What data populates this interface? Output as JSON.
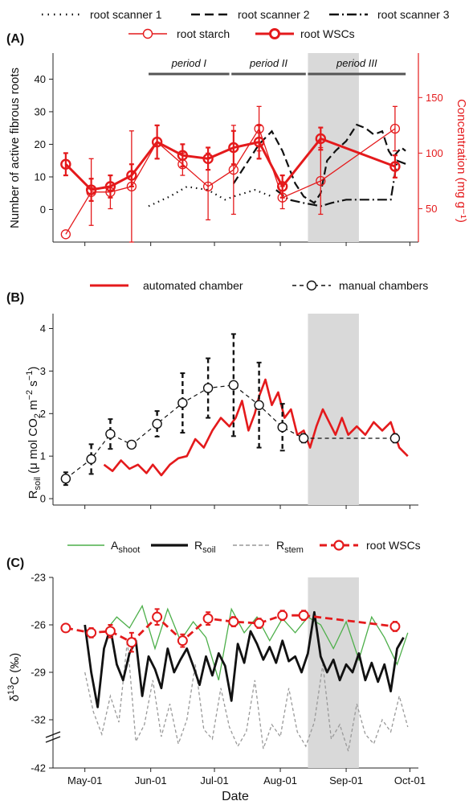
{
  "figure": {
    "panelA": {
      "tag": "(A)",
      "legend": {
        "row1": [
          "root scanner 1",
          "root scanner 2",
          "root scanner 3"
        ],
        "row2": [
          "root starch",
          "root WSCs"
        ]
      },
      "ylabel": "Number of active fibrous roots",
      "y2label": "Concentration (mg g⁻¹)",
      "periods": [
        "period I",
        "period II",
        "period III"
      ]
    },
    "panelB": {
      "tag": "(B)",
      "legend": [
        "automated chamber",
        "manual chambers"
      ],
      "ylabel": "R_soil (μ mol CO2 m^-2 s^-1)"
    },
    "panelC": {
      "tag": "(C)",
      "legend": [
        "A_shoot",
        "R_soil",
        "R_stem",
        "root WSCs"
      ],
      "ylabel": "δ¹³C (‰)"
    },
    "xlabel": "Date"
  },
  "chart_data": [
    {
      "type": "line",
      "panel": "A",
      "x_ticks": [
        "May-01",
        "Jun-01",
        "Jul-01",
        "Aug-01",
        "Sep-01",
        "Oct-01"
      ],
      "y_ticks": [
        0,
        10,
        20,
        30,
        40
      ],
      "ylim": [
        -10,
        48
      ],
      "y2_ticks": [
        50,
        100,
        150
      ],
      "y2lim": [
        20,
        190
      ],
      "periods": [
        {
          "name": "period I",
          "start": "2020-05-31",
          "end": "2020-07-08"
        },
        {
          "name": "period II",
          "start": "2020-07-09",
          "end": "2020-08-13"
        },
        {
          "name": "period III",
          "start": "2020-08-14",
          "end": "2020-09-29"
        }
      ],
      "shaded_interval": [
        "2020-08-14",
        "2020-09-07"
      ],
      "series": [
        {
          "name": "root scanner 1",
          "axis": "left",
          "style": "dotted",
          "color": "#111111",
          "x": [
            "2020-05-31",
            "2020-06-10",
            "2020-06-18",
            "2020-06-28",
            "2020-07-06",
            "2020-07-10",
            "2020-07-20",
            "2020-07-28"
          ],
          "y": [
            1,
            4,
            7,
            6,
            3,
            4,
            6,
            4
          ]
        },
        {
          "name": "root scanner 2",
          "axis": "left",
          "style": "dashed",
          "color": "#111111",
          "x": [
            "2020-07-10",
            "2020-07-16",
            "2020-07-22",
            "2020-07-28",
            "2020-08-02",
            "2020-08-08",
            "2020-08-12",
            "2020-08-17",
            "2020-08-20",
            "2020-08-23",
            "2020-08-27",
            "2020-09-01",
            "2020-09-06",
            "2020-09-10",
            "2020-09-14",
            "2020-09-18",
            "2020-09-21",
            "2020-09-23",
            "2020-09-27",
            "2020-09-29"
          ],
          "y": [
            8,
            14,
            20,
            24,
            18,
            8,
            4,
            2,
            5,
            15,
            18,
            21,
            26,
            25,
            23,
            24,
            18,
            16,
            19,
            18
          ]
        },
        {
          "name": "root scanner 3",
          "axis": "left",
          "style": "dashdot",
          "color": "#111111",
          "x": [
            "2020-07-30",
            "2020-08-05",
            "2020-08-12",
            "2020-08-20",
            "2020-08-25",
            "2020-09-01",
            "2020-09-10",
            "2020-09-18",
            "2020-09-22",
            "2020-09-25",
            "2020-09-29"
          ],
          "y": [
            6,
            3,
            2,
            1,
            2,
            3,
            3,
            3,
            3,
            15,
            14
          ]
        },
        {
          "name": "root starch",
          "axis": "right",
          "style": "thin-circle",
          "color": "#e41a1c",
          "x": [
            "2020-04-22",
            "2020-05-04",
            "2020-05-13",
            "2020-05-23",
            "2020-06-04",
            "2020-06-16",
            "2020-06-28",
            "2020-07-10",
            "2020-07-22",
            "2020-08-02",
            "2020-08-20",
            "2020-09-24"
          ],
          "y": [
            27,
            65,
            65,
            70,
            110,
            90,
            70,
            85,
            122,
            60,
            75,
            122
          ],
          "err": [
            0,
            30,
            15,
            50,
            15,
            10,
            30,
            40,
            20,
            10,
            30,
            20
          ]
        },
        {
          "name": "root WSCs",
          "axis": "right",
          "style": "thick-circle",
          "color": "#e41a1c",
          "x": [
            "2020-04-22",
            "2020-05-04",
            "2020-05-13",
            "2020-05-23",
            "2020-06-04",
            "2020-06-16",
            "2020-06-28",
            "2020-07-10",
            "2020-07-22",
            "2020-08-02",
            "2020-08-20",
            "2020-09-24"
          ],
          "y": [
            90,
            67,
            70,
            80,
            110,
            98,
            95,
            105,
            110,
            70,
            113,
            88
          ],
          "err": [
            10,
            10,
            10,
            10,
            15,
            10,
            10,
            15,
            15,
            10,
            10,
            10
          ]
        }
      ]
    },
    {
      "type": "line",
      "panel": "B",
      "x_ticks": [
        "May-01",
        "Jun-01",
        "Jul-01",
        "Aug-01",
        "Sep-01",
        "Oct-01"
      ],
      "y_ticks": [
        0,
        1,
        2,
        3,
        4
      ],
      "ylim": [
        -0.15,
        4.35
      ],
      "shaded_interval": [
        "2020-08-14",
        "2020-09-07"
      ],
      "series": [
        {
          "name": "automated chamber",
          "style": "thick-line",
          "color": "#e41a1c",
          "x": [
            "2020-05-10",
            "2020-05-14",
            "2020-05-18",
            "2020-05-22",
            "2020-05-26",
            "2020-05-30",
            "2020-06-02",
            "2020-06-06",
            "2020-06-10",
            "2020-06-14",
            "2020-06-18",
            "2020-06-22",
            "2020-06-26",
            "2020-06-30",
            "2020-07-04",
            "2020-07-08",
            "2020-07-11",
            "2020-07-14",
            "2020-07-17",
            "2020-07-20",
            "2020-07-22",
            "2020-07-25",
            "2020-07-28",
            "2020-07-31",
            "2020-08-03",
            "2020-08-06",
            "2020-08-09",
            "2020-08-12",
            "2020-08-15",
            "2020-08-18",
            "2020-08-21",
            "2020-08-24",
            "2020-08-27",
            "2020-08-30",
            "2020-09-02",
            "2020-09-06",
            "2020-09-10",
            "2020-09-14",
            "2020-09-18",
            "2020-09-22",
            "2020-09-26",
            "2020-09-30"
          ],
          "y": [
            0.8,
            0.65,
            0.9,
            0.7,
            0.8,
            0.6,
            0.8,
            0.55,
            0.8,
            0.95,
            1.0,
            1.4,
            1.2,
            1.6,
            1.9,
            1.7,
            1.9,
            2.3,
            1.6,
            2.0,
            2.4,
            2.8,
            2.2,
            2.5,
            1.9,
            2.1,
            1.5,
            1.6,
            1.2,
            1.7,
            2.1,
            1.8,
            1.5,
            1.9,
            1.5,
            1.7,
            1.5,
            1.8,
            1.6,
            1.8,
            1.2,
            1.0
          ]
        },
        {
          "name": "manual chambers",
          "style": "dashed-circle",
          "color": "#111111",
          "x": [
            "2020-04-22",
            "2020-05-04",
            "2020-05-13",
            "2020-05-23",
            "2020-06-04",
            "2020-06-16",
            "2020-06-28",
            "2020-07-10",
            "2020-07-22",
            "2020-08-02",
            "2020-08-12",
            "2020-09-24"
          ],
          "y": [
            0.47,
            0.93,
            1.52,
            1.27,
            1.76,
            2.25,
            2.6,
            2.67,
            2.2,
            1.68,
            1.42,
            1.42
          ],
          "err": [
            0.15,
            0.35,
            0.35,
            0.05,
            0.3,
            0.7,
            0.7,
            1.2,
            1.0,
            0.55,
            0.1,
            0.1
          ]
        }
      ]
    },
    {
      "type": "line",
      "panel": "C",
      "x_ticks": [
        "May-01",
        "Jun-01",
        "Jul-01",
        "Aug-01",
        "Sep-01",
        "Oct-01"
      ],
      "y_ticks": [
        -23,
        -26,
        -29,
        -32,
        -42
      ],
      "ylim": [
        -42,
        -23
      ],
      "axis_break": "between -32 and -42",
      "shaded_interval": [
        "2020-08-14",
        "2020-09-07"
      ],
      "series": [
        {
          "name": "A_shoot",
          "style": "thin-line",
          "color": "#4daf4a",
          "x": [
            "2020-05-10",
            "2020-05-16",
            "2020-05-22",
            "2020-05-28",
            "2020-06-03",
            "2020-06-09",
            "2020-06-15",
            "2020-06-21",
            "2020-06-27",
            "2020-07-03",
            "2020-07-09",
            "2020-07-15",
            "2020-07-21",
            "2020-07-27",
            "2020-08-02",
            "2020-08-08",
            "2020-08-14",
            "2020-08-20",
            "2020-08-26",
            "2020-09-01",
            "2020-09-07",
            "2020-09-13",
            "2020-09-19",
            "2020-09-25",
            "2020-09-30"
          ],
          "y": [
            -26.5,
            -25.5,
            -26.2,
            -24.8,
            -27.5,
            -25.0,
            -27.0,
            -25.8,
            -26.8,
            -29.5,
            -25.0,
            -26.5,
            -25.5,
            -27.0,
            -25.6,
            -26.5,
            -25.5,
            -26.0,
            -27.5,
            -25.8,
            -28.2,
            -25.5,
            -26.8,
            -28.5,
            -26.5
          ]
        },
        {
          "name": "R_soil",
          "style": "thick-line",
          "color": "#111111",
          "x": [
            "2020-05-01",
            "2020-05-04",
            "2020-05-07",
            "2020-05-10",
            "2020-05-13",
            "2020-05-16",
            "2020-05-19",
            "2020-05-22",
            "2020-05-25",
            "2020-05-28",
            "2020-05-31",
            "2020-06-03",
            "2020-06-06",
            "2020-06-09",
            "2020-06-12",
            "2020-06-15",
            "2020-06-18",
            "2020-06-21",
            "2020-06-24",
            "2020-06-27",
            "2020-06-30",
            "2020-07-03",
            "2020-07-06",
            "2020-07-09",
            "2020-07-12",
            "2020-07-15",
            "2020-07-18",
            "2020-07-21",
            "2020-07-24",
            "2020-07-27",
            "2020-07-30",
            "2020-08-02",
            "2020-08-05",
            "2020-08-08",
            "2020-08-11",
            "2020-08-14",
            "2020-08-17",
            "2020-08-20",
            "2020-08-23",
            "2020-08-26",
            "2020-08-29",
            "2020-09-01",
            "2020-09-04",
            "2020-09-07",
            "2020-09-10",
            "2020-09-13",
            "2020-09-16",
            "2020-09-19",
            "2020-09-22",
            "2020-09-25",
            "2020-09-28"
          ],
          "y": [
            -26.0,
            -29.0,
            -31.2,
            -27.5,
            -26.2,
            -28.5,
            -29.5,
            -27.8,
            -27.0,
            -30.5,
            -28.0,
            -28.8,
            -30.0,
            -27.5,
            -29.0,
            -28.2,
            -27.5,
            -28.6,
            -29.8,
            -28.0,
            -29.2,
            -27.8,
            -28.6,
            -30.8,
            -27.2,
            -28.4,
            -26.4,
            -27.2,
            -28.2,
            -27.4,
            -28.4,
            -27.0,
            -28.3,
            -28.0,
            -29.0,
            -27.8,
            -25.2,
            -28.0,
            -29.0,
            -28.2,
            -29.5,
            -28.5,
            -29.0,
            -27.8,
            -29.5,
            -28.4,
            -29.6,
            -28.5,
            -30.2,
            -27.5,
            -26.8
          ]
        },
        {
          "name": "R_stem",
          "style": "dashed-thin",
          "color": "#999999",
          "x": [
            "2020-05-01",
            "2020-05-05",
            "2020-05-09",
            "2020-05-13",
            "2020-05-17",
            "2020-05-21",
            "2020-05-25",
            "2020-05-29",
            "2020-06-02",
            "2020-06-06",
            "2020-06-10",
            "2020-06-14",
            "2020-06-18",
            "2020-06-22",
            "2020-06-26",
            "2020-06-30",
            "2020-07-04",
            "2020-07-08",
            "2020-07-12",
            "2020-07-16",
            "2020-07-20",
            "2020-07-24",
            "2020-07-28",
            "2020-08-01",
            "2020-08-05",
            "2020-08-09",
            "2020-08-13",
            "2020-08-17",
            "2020-08-21",
            "2020-08-25",
            "2020-08-29",
            "2020-09-02",
            "2020-09-06",
            "2020-09-10",
            "2020-09-14",
            "2020-09-18",
            "2020-09-22",
            "2020-09-26",
            "2020-09-30"
          ],
          "y": [
            -29.0,
            -31.5,
            -35.0,
            -30.5,
            -32.5,
            -27.0,
            -36.5,
            -33.0,
            -29.5,
            -35.5,
            -31.0,
            -37.0,
            -32.0,
            -28.5,
            -34.0,
            -36.0,
            -30.0,
            -33.5,
            -37.5,
            -34.5,
            -29.5,
            -38.0,
            -33.0,
            -35.5,
            -30.0,
            -34.5,
            -37.5,
            -32.5,
            -28.5,
            -36.0,
            -33.0,
            -38.5,
            -31.0,
            -35.0,
            -37.0,
            -32.0,
            -34.5,
            -30.5,
            -33.5
          ]
        },
        {
          "name": "root WSCs",
          "style": "dashed-thick-circle",
          "color": "#e41a1c",
          "x": [
            "2020-04-22",
            "2020-05-04",
            "2020-05-13",
            "2020-05-23",
            "2020-06-04",
            "2020-06-16",
            "2020-06-28",
            "2020-07-10",
            "2020-07-22",
            "2020-08-02",
            "2020-08-12",
            "2020-09-24"
          ],
          "y": [
            -26.2,
            -26.5,
            -26.4,
            -27.1,
            -25.5,
            -27.0,
            -25.6,
            -25.8,
            -25.9,
            -25.4,
            -25.4,
            -26.1
          ],
          "err": [
            0.15,
            0.3,
            0.4,
            0.6,
            0.5,
            0.4,
            0.4,
            0.3,
            0.3,
            0.3,
            0.3,
            0.3
          ]
        }
      ]
    }
  ]
}
